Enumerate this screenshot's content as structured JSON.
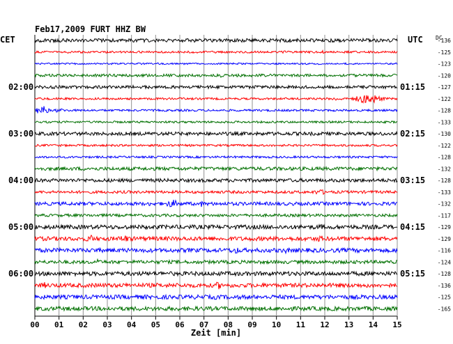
{
  "chart_data": {
    "type": "line",
    "title": "Feb17,2009   FURT HHZ BW",
    "left_axis_label": "CET",
    "right_axis_label": "UTC",
    "dc_header": "DC",
    "xlabel": "Zeit [min]",
    "xlim": [
      0,
      15
    ],
    "x_ticks": [
      "00",
      "01",
      "02",
      "03",
      "04",
      "05",
      "06",
      "07",
      "08",
      "09",
      "10",
      "11",
      "12",
      "13",
      "14",
      "15"
    ],
    "grid": true,
    "trace_colors": [
      "#000000",
      "#ff0000",
      "#0000ff",
      "#007000"
    ],
    "hour_labels_left": [
      {
        "trace": 4,
        "text": "02:00"
      },
      {
        "trace": 8,
        "text": "03:00"
      },
      {
        "trace": 12,
        "text": "04:00"
      },
      {
        "trace": 16,
        "text": "05:00"
      },
      {
        "trace": 20,
        "text": "06:00"
      }
    ],
    "hour_labels_right": [
      {
        "trace": 4,
        "text": "01:15"
      },
      {
        "trace": 8,
        "text": "02:15"
      },
      {
        "trace": 12,
        "text": "03:15"
      },
      {
        "trace": 16,
        "text": "04:15"
      },
      {
        "trace": 20,
        "text": "05:15"
      }
    ],
    "dc_values": [
      -136,
      -125,
      -123,
      -120,
      -127,
      -122,
      -128,
      -133,
      -130,
      -122,
      -128,
      -132,
      -128,
      -133,
      -132,
      -117,
      -129,
      -129,
      -116,
      -124,
      -128,
      -136,
      -125,
      -165
    ],
    "series": [
      {
        "amplitude": 2.5,
        "events": []
      },
      {
        "amplitude": 1.5,
        "events": [
          {
            "min": 10.3,
            "amp": 3,
            "dur": 0.15
          },
          {
            "min": 11.9,
            "amp": 3,
            "dur": 0.15
          }
        ]
      },
      {
        "amplitude": 1.2,
        "events": []
      },
      {
        "amplitude": 2.0,
        "events": [
          {
            "min": 7.7,
            "amp": 3,
            "dur": 0.3
          }
        ]
      },
      {
        "amplitude": 2.2,
        "events": []
      },
      {
        "amplitude": 1.5,
        "events": [
          {
            "min": 12.5,
            "amp": 3,
            "dur": 0.6
          },
          {
            "min": 13.8,
            "amp": 8,
            "dur": 0.9
          }
        ]
      },
      {
        "amplitude": 1.5,
        "events": [
          {
            "min": 0.3,
            "amp": 8,
            "dur": 0.4
          },
          {
            "min": 1.0,
            "amp": 3,
            "dur": 0.6
          }
        ]
      },
      {
        "amplitude": 1.5,
        "events": []
      },
      {
        "amplitude": 2.5,
        "events": []
      },
      {
        "amplitude": 1.5,
        "events": []
      },
      {
        "amplitude": 1.5,
        "events": []
      },
      {
        "amplitude": 2.5,
        "events": []
      },
      {
        "amplitude": 2.5,
        "events": []
      },
      {
        "amplitude": 2.0,
        "events": [
          {
            "min": 11.8,
            "amp": 4,
            "dur": 0.7
          }
        ]
      },
      {
        "amplitude": 2.5,
        "events": [
          {
            "min": 4.8,
            "amp": 4,
            "dur": 0.3
          },
          {
            "min": 5.7,
            "amp": 6,
            "dur": 0.6
          },
          {
            "min": 6.9,
            "amp": 5,
            "dur": 0.1
          }
        ]
      },
      {
        "amplitude": 2.0,
        "events": []
      },
      {
        "amplitude": 3.0,
        "events": [
          {
            "min": 11.8,
            "amp": 4,
            "dur": 0.6
          }
        ]
      },
      {
        "amplitude": 3.0,
        "events": [
          {
            "min": 2.3,
            "amp": 6,
            "dur": 0.4
          },
          {
            "min": 3.7,
            "amp": 6,
            "dur": 0.5
          },
          {
            "min": 11.8,
            "amp": 5,
            "dur": 0.5
          }
        ]
      },
      {
        "amplitude": 3.0,
        "events": [
          {
            "min": 8.3,
            "amp": 5,
            "dur": 0.7
          },
          {
            "min": 10.4,
            "amp": 5,
            "dur": 0.3
          },
          {
            "min": 2.6,
            "amp": 10,
            "dur": 0.05
          }
        ]
      },
      {
        "amplitude": 2.5,
        "events": [
          {
            "min": 2.6,
            "amp": 8,
            "dur": 0.05
          }
        ]
      },
      {
        "amplitude": 3.0,
        "events": [
          {
            "min": 12.8,
            "amp": 4,
            "dur": 0.3
          }
        ]
      },
      {
        "amplitude": 3.0,
        "events": [
          {
            "min": 0.4,
            "amp": 5,
            "dur": 0.2
          },
          {
            "min": 7.6,
            "amp": 6,
            "dur": 0.3
          }
        ]
      },
      {
        "amplitude": 3.0,
        "events": [
          {
            "min": 7.5,
            "amp": 4,
            "dur": 0.4
          }
        ]
      },
      {
        "amplitude": 3.0,
        "events": []
      }
    ]
  }
}
